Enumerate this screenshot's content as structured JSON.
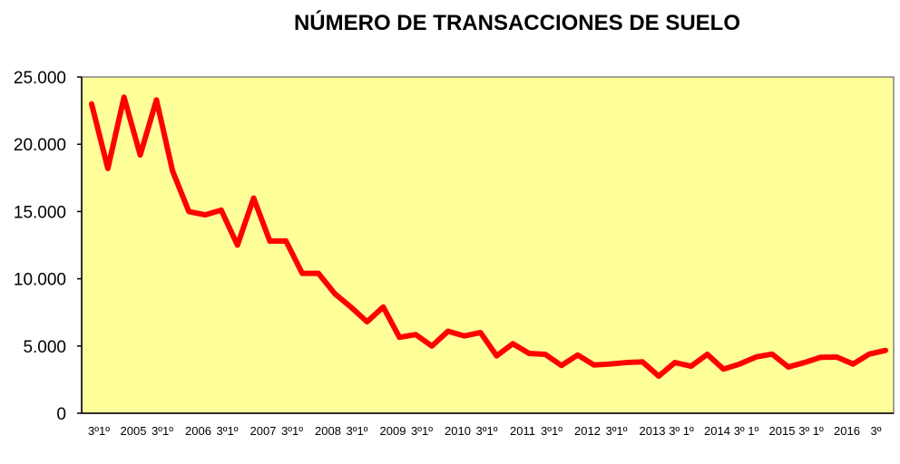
{
  "chart_data": {
    "type": "line",
    "title": "NÚMERO DE TRANSACCIONES DE SUELO",
    "xlabel": "",
    "ylabel": "",
    "ylim": [
      0,
      25000
    ],
    "y_ticks": [
      0,
      5000,
      10000,
      15000,
      20000,
      25000
    ],
    "y_tick_labels": [
      "0",
      "5.000",
      "10.000",
      "15.000",
      "20.000",
      "25.000"
    ],
    "x_tick_labels": [
      "3º1º",
      "2005",
      "3º1º",
      "2006",
      "3º1º",
      "2007",
      "3º1º",
      "2008",
      "3º1º",
      "2009",
      "3º1º",
      "2010",
      "3º1º",
      "2011",
      "3º1º",
      "2012",
      "3º1º",
      "2013",
      "3º 1º",
      "2014",
      "3º 1º",
      "2015",
      "3º 1º",
      "2016",
      "3º"
    ],
    "grid": false,
    "plot_background": "#FFFF99",
    "series": [
      {
        "color": "#FF0000",
        "values": [
          23000,
          18200,
          23500,
          19200,
          23300,
          18000,
          15000,
          14750,
          15100,
          12500,
          16000,
          12800,
          12800,
          10400,
          10400,
          8900,
          7900,
          6800,
          7900,
          5650,
          5850,
          5000,
          6100,
          5750,
          6000,
          4270,
          5170,
          4450,
          4380,
          3550,
          4330,
          3590,
          3660,
          3770,
          3820,
          2760,
          3770,
          3500,
          4380,
          3280,
          3660,
          4180,
          4400,
          3440,
          3770,
          4160,
          4180,
          3660,
          4400,
          4670
        ]
      }
    ]
  }
}
